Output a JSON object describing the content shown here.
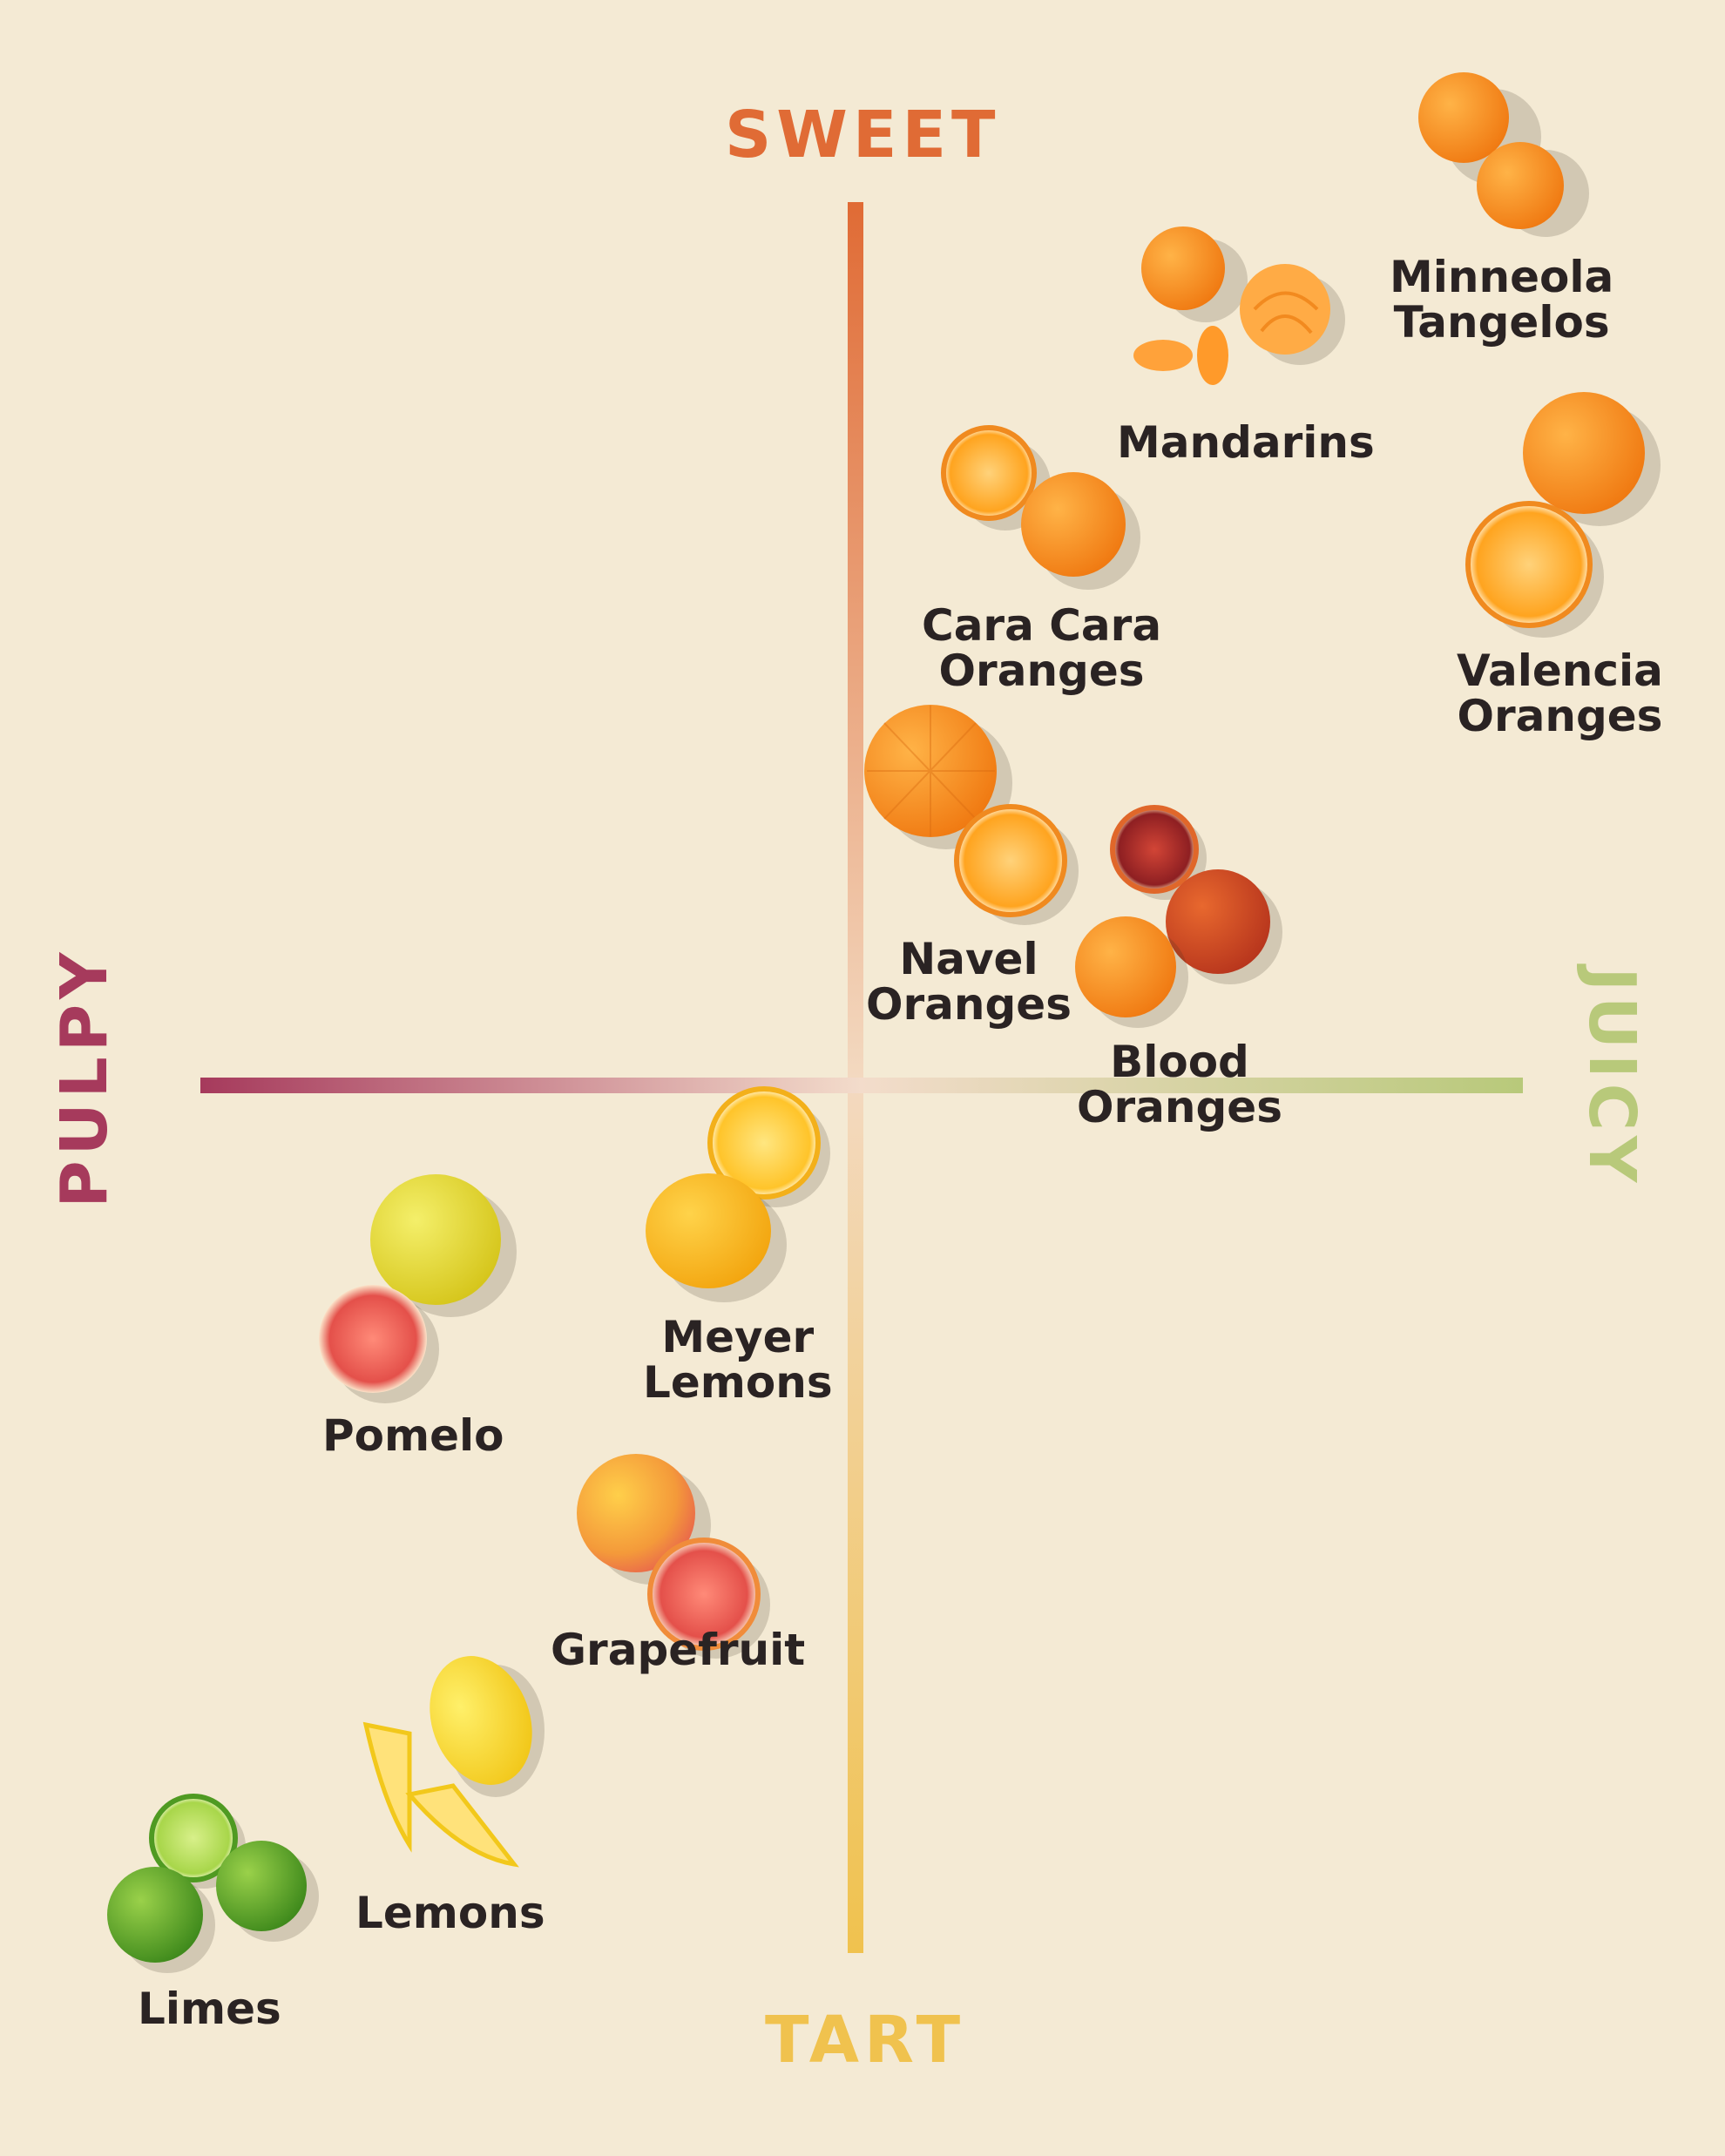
{
  "axes": {
    "top": {
      "label": "SWEET",
      "color": "#e06b35"
    },
    "bottom": {
      "label": "TART",
      "color": "#f0c24e"
    },
    "left": {
      "label": "PULPY",
      "color": "#a63a5c"
    },
    "right": {
      "label": "JUICY",
      "color": "#b8c97a"
    }
  },
  "fruits": [
    {
      "id": "minneola-tangelos",
      "lines": [
        "Minneola",
        "Tangelos"
      ],
      "icon": "tangelo-icon"
    },
    {
      "id": "mandarins",
      "lines": [
        "Mandarins"
      ],
      "icon": "mandarin-icon"
    },
    {
      "id": "cara-cara-oranges",
      "lines": [
        "Cara Cara",
        "Oranges"
      ],
      "icon": "orange-icon"
    },
    {
      "id": "valencia-oranges",
      "lines": [
        "Valencia",
        "Oranges"
      ],
      "icon": "orange-icon"
    },
    {
      "id": "navel-oranges",
      "lines": [
        "Navel",
        "Oranges"
      ],
      "icon": "orange-icon"
    },
    {
      "id": "blood-oranges",
      "lines": [
        "Blood",
        "Oranges"
      ],
      "icon": "blood-orange-icon"
    },
    {
      "id": "meyer-lemons",
      "lines": [
        "Meyer",
        "Lemons"
      ],
      "icon": "lemon-icon"
    },
    {
      "id": "pomelo",
      "lines": [
        "Pomelo"
      ],
      "icon": "pomelo-icon"
    },
    {
      "id": "grapefruit",
      "lines": [
        "Grapefruit"
      ],
      "icon": "grapefruit-icon"
    },
    {
      "id": "lemons",
      "lines": [
        "Lemons"
      ],
      "icon": "lemon-icon"
    },
    {
      "id": "limes",
      "lines": [
        "Limes"
      ],
      "icon": "lime-icon"
    }
  ]
}
